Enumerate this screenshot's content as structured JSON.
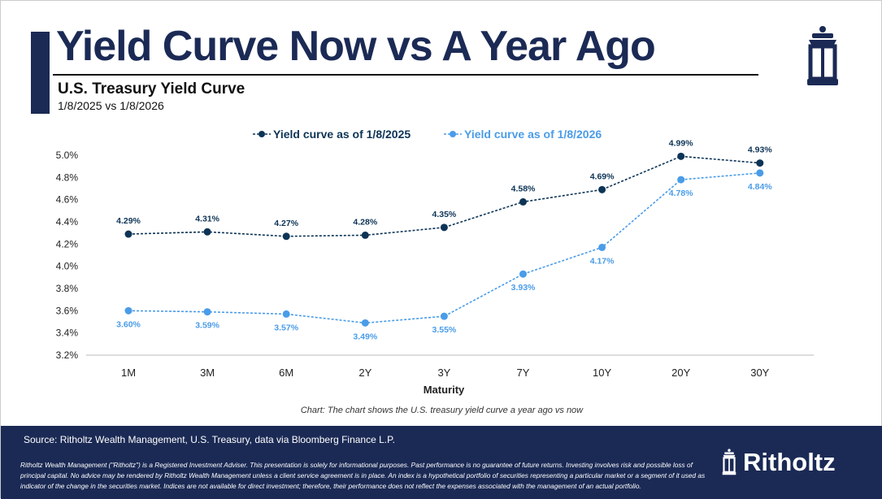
{
  "header": {
    "title": "Yield Curve Now vs A Year Ago",
    "subtitle": "U.S. Treasury Yield Curve",
    "dates": "1/8/2025 vs 1/8/2026",
    "logo_icon": "lantern-icon"
  },
  "chart_data": {
    "type": "line",
    "categories": [
      "1M",
      "3M",
      "6M",
      "2Y",
      "3Y",
      "7Y",
      "10Y",
      "20Y",
      "30Y"
    ],
    "xlabel": "Maturity",
    "ylabel": "",
    "ylim": [
      3.2,
      5.0
    ],
    "yticks": [
      "3.2%",
      "3.4%",
      "3.6%",
      "3.8%",
      "4.0%",
      "4.2%",
      "4.4%",
      "4.6%",
      "4.8%",
      "5.0%"
    ],
    "grid": false,
    "legend": "top",
    "series": [
      {
        "name": "Yield curve as of 1/8/2025",
        "color": "#0d3456",
        "values": [
          4.29,
          4.31,
          4.27,
          4.28,
          4.35,
          4.58,
          4.69,
          4.99,
          4.93
        ],
        "labels": [
          "4.29%",
          "4.31%",
          "4.27%",
          "4.28%",
          "4.35%",
          "4.58%",
          "4.69%",
          "4.99%",
          "4.93%"
        ]
      },
      {
        "name": "Yield curve as of 1/8/2026",
        "color": "#4a9ce8",
        "values": [
          3.6,
          3.59,
          3.57,
          3.49,
          3.55,
          3.93,
          4.17,
          4.78,
          4.84
        ],
        "labels": [
          "3.60%",
          "3.59%",
          "3.57%",
          "3.49%",
          "3.55%",
          "3.93%",
          "4.17%",
          "4.78%",
          "4.84%"
        ]
      }
    ]
  },
  "caption": "Chart: The chart shows the U.S. treasury yield curve a year ago vs now",
  "footer": {
    "source": "Source: Ritholtz Wealth Management, U.S. Treasury, data via Bloomberg Finance L.P.",
    "disclaimer": "Ritholtz Wealth Management (\"Ritholtz\") is a Registered Investment Adviser. This presentation is solely for informational purposes. Past performance is no guarantee of future returns. Investing involves risk and possible loss of principal capital. No advice may be rendered by Ritholtz Wealth Management unless a client service agreement is in place. An index is a hypothetical portfolio of securities representing a particular market or a segment of it used as indicator of the change in the securities market. Indices are not available for direct investment; therefore, their performance does not reflect the expenses associated with the management of an actual portfolio.",
    "brand": "Ritholtz"
  }
}
